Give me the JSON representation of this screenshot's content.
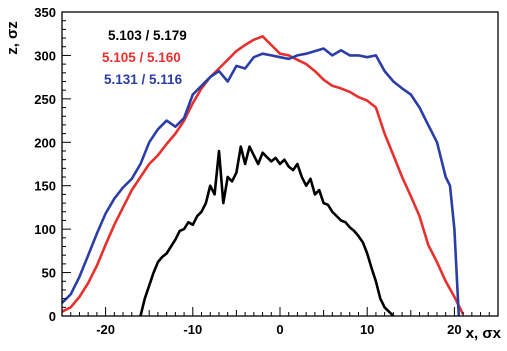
{
  "chart_data": {
    "type": "line",
    "title": "",
    "xlabel": "x, σx",
    "ylabel": "z, σz",
    "xlim": [
      -25,
      25
    ],
    "ylim": [
      0,
      350
    ],
    "x_ticks": [
      -20,
      -10,
      0,
      10,
      20
    ],
    "y_ticks": [
      0,
      50,
      100,
      150,
      200,
      250,
      300,
      350
    ],
    "grid": false,
    "legend_position": "top-left",
    "series": [
      {
        "name": "5.103 / 5.179",
        "color": "#000000",
        "x": [
          -16,
          -15.5,
          -15,
          -14.5,
          -14,
          -13.5,
          -13,
          -12.5,
          -12,
          -11.5,
          -11,
          -10.5,
          -10,
          -9.5,
          -9,
          -8.5,
          -8,
          -7.5,
          -7,
          -6.5,
          -6,
          -5.5,
          -5,
          -4.5,
          -4,
          -3.5,
          -3,
          -2.5,
          -2,
          -1.5,
          -1,
          -0.5,
          0,
          0.5,
          1,
          1.5,
          2,
          2.5,
          3,
          3.5,
          4,
          4.5,
          5,
          5.5,
          6,
          6.5,
          7,
          7.5,
          8,
          8.5,
          9,
          9.5,
          10,
          10.5,
          11,
          11.5,
          12,
          12.5,
          13
        ],
        "y": [
          0,
          20,
          35,
          50,
          62,
          68,
          72,
          80,
          88,
          98,
          100,
          108,
          105,
          115,
          120,
          130,
          150,
          140,
          190,
          130,
          160,
          155,
          165,
          195,
          175,
          195,
          185,
          175,
          188,
          183,
          178,
          182,
          175,
          180,
          172,
          168,
          175,
          160,
          150,
          158,
          140,
          145,
          130,
          128,
          120,
          115,
          110,
          108,
          102,
          98,
          92,
          85,
          72,
          55,
          40,
          20,
          10,
          5,
          0
        ]
      },
      {
        "name": "5.105 / 5.160",
        "color": "#e8302e",
        "x": [
          -25,
          -24,
          -23,
          -22,
          -21,
          -20,
          -19,
          -18,
          -17,
          -16,
          -15,
          -14,
          -13,
          -12,
          -11,
          -10,
          -9,
          -8,
          -7,
          -6,
          -5,
          -4,
          -3,
          -2,
          -1,
          0,
          1,
          2,
          3,
          4,
          5,
          6,
          7,
          8,
          9,
          10,
          11,
          12,
          13,
          14,
          15,
          16,
          17,
          18,
          19,
          20,
          21
        ],
        "y": [
          5,
          10,
          22,
          38,
          58,
          82,
          105,
          125,
          145,
          160,
          175,
          185,
          198,
          210,
          225,
          245,
          262,
          275,
          285,
          295,
          305,
          312,
          318,
          322,
          312,
          302,
          300,
          295,
          290,
          282,
          272,
          265,
          262,
          258,
          252,
          248,
          240,
          210,
          185,
          160,
          138,
          115,
          82,
          62,
          40,
          22,
          2
        ]
      },
      {
        "name": "5.131 / 5.116",
        "color": "#2b3ea8",
        "x": [
          -25,
          -24,
          -23,
          -22,
          -21,
          -20,
          -19,
          -18,
          -17,
          -16,
          -15,
          -14,
          -13,
          -12,
          -11,
          -10,
          -9,
          -8,
          -7,
          -6,
          -5,
          -4,
          -3,
          -2,
          -1,
          0,
          1,
          2,
          3,
          4,
          5,
          6,
          7,
          8,
          9,
          10,
          11,
          12,
          13,
          14,
          15,
          16,
          17,
          18,
          19,
          19.5,
          20,
          20.5
        ],
        "y": [
          15,
          25,
          45,
          70,
          95,
          118,
          135,
          148,
          158,
          175,
          200,
          215,
          225,
          218,
          228,
          255,
          265,
          275,
          282,
          270,
          288,
          285,
          298,
          302,
          300,
          298,
          296,
          300,
          302,
          305,
          308,
          300,
          306,
          300,
          300,
          298,
          300,
          282,
          270,
          262,
          255,
          240,
          220,
          200,
          160,
          150,
          100,
          0
        ]
      }
    ]
  }
}
